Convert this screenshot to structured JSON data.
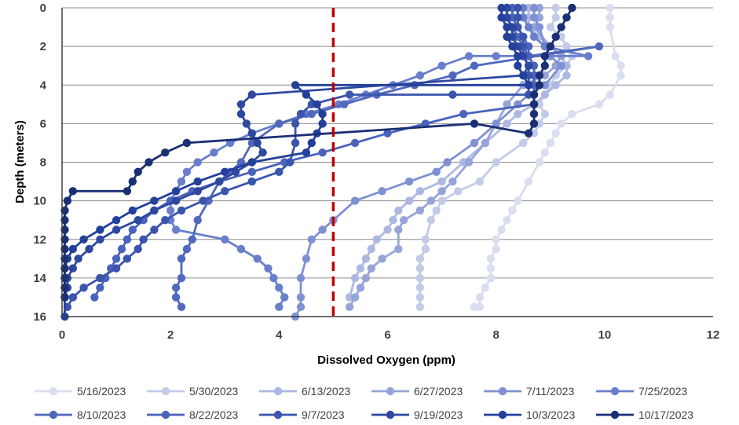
{
  "chart_data": {
    "type": "line",
    "title": "",
    "xlabel": "Dissolved Oxygen (ppm)",
    "ylabel": "Depth (meters)",
    "xlim": [
      0,
      12
    ],
    "ylim": [
      16,
      0
    ],
    "y_reversed": true,
    "xticks": [
      "0",
      "2",
      "4",
      "6",
      "8",
      "10",
      "12"
    ],
    "yticks": [
      "0",
      "2",
      "4",
      "6",
      "8",
      "10",
      "12",
      "14",
      "16"
    ],
    "grid": "horizontal",
    "legend_position": "bottom",
    "reference_line": {
      "x": 5,
      "color": "#c00000",
      "style": "dashed"
    },
    "series": [
      {
        "name": "5/16/2023",
        "color": "#d9def0",
        "x": [
          10.1,
          10.1,
          10.1,
          10.2,
          10.3,
          10.3,
          10.1,
          9.9,
          9.4,
          9.2,
          9.1,
          9.0,
          8.9,
          8.8,
          8.6,
          8.4,
          8.3,
          8.2,
          8.1,
          8.0,
          8.0,
          7.9,
          7.9,
          7.9,
          7.8,
          7.7,
          7.7,
          7.6,
          7.6
        ],
        "y": [
          0,
          0.5,
          1,
          2.5,
          3,
          3.5,
          4.5,
          5,
          5.5,
          6,
          6.5,
          7,
          7.5,
          8,
          9,
          10,
          10.5,
          11,
          11.5,
          12,
          12.5,
          13,
          13.5,
          14,
          14.5,
          15,
          15.5,
          15.5,
          15.5
        ]
      },
      {
        "name": "5/30/2023",
        "color": "#c3cbe9",
        "x": [
          9.1,
          9.1,
          9.0,
          9.2,
          9.3,
          9.4,
          9.3,
          9.1,
          9.0,
          8.8,
          8.9,
          8.8,
          8.7,
          8.5,
          8.0,
          7.7,
          7.3,
          7.0,
          6.9,
          6.8,
          6.7,
          6.7,
          6.6,
          6.6,
          6.6,
          6.6,
          6.6,
          6.6
        ],
        "y": [
          0,
          0.5,
          1,
          1.5,
          2,
          2.5,
          3,
          3.5,
          4,
          5,
          5.5,
          6,
          6.5,
          7,
          8,
          9,
          9.5,
          10,
          10.5,
          11,
          12,
          12.5,
          13,
          13.5,
          14,
          14.5,
          15,
          15.5
        ]
      },
      {
        "name": "6/13/2023",
        "color": "#adb8e2",
        "x": [
          8.6,
          8.6,
          8.6,
          8.8,
          9.0,
          9.2,
          9.3,
          9.3,
          9.1,
          8.9,
          8.7,
          8.4,
          8.2,
          7.8,
          7.4,
          7.0,
          6.6,
          6.4,
          6.2,
          6.1,
          6.0,
          5.8,
          5.7,
          5.6,
          5.5,
          5.4,
          5.3
        ],
        "y": [
          0,
          0.5,
          1,
          1.5,
          2,
          2.5,
          3,
          3.5,
          4,
          4.5,
          5,
          5.5,
          6,
          7,
          8,
          9,
          9.5,
          10,
          10.5,
          11,
          11.5,
          12,
          12.5,
          13,
          13.5,
          14,
          15
        ]
      },
      {
        "name": "6/27/2023",
        "color": "#96a4da",
        "x": [
          8.8,
          8.8,
          8.7,
          9.0,
          9.2,
          9.1,
          8.9,
          8.5,
          8.2,
          8.0,
          7.8,
          7.5,
          7.2,
          7.0,
          6.8,
          6.6,
          6.3,
          6.2,
          6.2,
          5.9,
          5.7,
          5.6,
          5.5,
          5.4,
          5.3
        ],
        "y": [
          0,
          0.5,
          1,
          2,
          2.5,
          3,
          3.5,
          4,
          5,
          6,
          7,
          8,
          9,
          9.5,
          10,
          10.5,
          11,
          11.5,
          12.5,
          13,
          13.5,
          14,
          14.5,
          15,
          15.5
        ]
      },
      {
        "name": "7/11/2023",
        "color": "#7f91d3",
        "x": [
          8.7,
          8.7,
          8.8,
          8.9,
          9.0,
          9.2,
          8.9,
          8.6,
          8.4,
          8.0,
          7.6,
          7.1,
          6.9,
          6.4,
          5.9,
          5.4,
          5.0,
          4.8,
          4.6,
          4.5,
          4.4,
          4.4,
          4.4,
          4.3
        ],
        "y": [
          0,
          0.5,
          1,
          2,
          2.5,
          3,
          4,
          4.5,
          5,
          6,
          7,
          8,
          8.5,
          9,
          9.5,
          10,
          11,
          11.5,
          12,
          13,
          14,
          15,
          15.5,
          16
        ]
      },
      {
        "name": "7/25/2023",
        "color": "#6a7fcc",
        "x": [
          8.5,
          8.5,
          8.6,
          8.7,
          8.9,
          9.7,
          8.6,
          8.0,
          7.5,
          7.0,
          6.6,
          6.1,
          5.6,
          5.1,
          4.5,
          4.0,
          3.5,
          3.1,
          2.8,
          2.5,
          2.3,
          2.2,
          2.1,
          2.0,
          2.0,
          2.0,
          2.1,
          3.0,
          3.3,
          3.6,
          3.8,
          3.9,
          4.0,
          4.1,
          4.0
        ],
        "y": [
          0,
          0.5,
          1,
          1.5,
          2,
          2.5,
          2.5,
          2.5,
          2.5,
          3,
          3.5,
          4,
          4.5,
          5,
          5.5,
          6,
          6.5,
          7,
          7.5,
          8,
          8.5,
          9,
          9.5,
          10,
          10.5,
          11,
          11.5,
          12,
          12.5,
          13,
          13.5,
          14,
          14.5,
          15,
          15.5
        ]
      },
      {
        "name": "8/10/2023",
        "color": "#5068bd",
        "x": [
          8.2,
          8.2,
          8.3,
          8.4,
          8.5,
          8.6,
          9.9,
          7.6,
          7.2,
          6.5,
          5.8,
          5.2,
          4.6,
          4.0,
          3.5,
          3.3,
          3.1,
          2.9,
          2.7,
          2.5,
          2.4,
          2.3,
          2.2,
          2.2,
          2.1,
          2.1,
          2.2
        ],
        "y": [
          0,
          0.5,
          1,
          1.5,
          2,
          2.5,
          2,
          3,
          3.5,
          4,
          4.5,
          5,
          5.5,
          6,
          7,
          8,
          8.5,
          9,
          10,
          11,
          12,
          12.5,
          13,
          14,
          14.5,
          15,
          15.5
        ]
      },
      {
        "name": "8/22/2023",
        "color": "#4a63bb",
        "x": [
          8.3,
          8.3,
          8.4,
          8.5,
          8.6,
          8.6,
          8.7,
          8.7,
          8.7,
          8.7,
          8.7,
          7.4,
          6.7,
          6.0,
          5.4,
          4.8,
          4.1,
          3.5,
          2.9,
          2.4,
          2.0,
          1.7,
          1.5,
          1.3,
          1.2,
          1.1,
          1.0,
          0.9,
          0.8,
          0.7,
          0.6
        ],
        "y": [
          0,
          0.5,
          1,
          1.5,
          2,
          2.5,
          3,
          3.5,
          4,
          4.5,
          5,
          5.5,
          6,
          6.5,
          7,
          7.5,
          8,
          8.5,
          9,
          9.5,
          10,
          10.5,
          11,
          11.5,
          12,
          12.5,
          13,
          13.5,
          14,
          14.5,
          15
        ]
      },
      {
        "name": "9/7/2023",
        "color": "#3a55ab",
        "x": [
          8.4,
          8.4,
          8.4,
          8.5,
          8.5,
          8.5,
          8.6,
          8.6,
          8.6,
          8.6,
          7.2,
          5.3,
          4.6,
          4.4,
          4.3,
          4.3,
          4.2,
          4.0,
          3.5,
          3.0,
          2.6,
          2.2,
          1.9,
          1.7,
          1.5,
          1.4,
          1.2,
          1.0,
          0.7,
          0.4,
          0.2,
          0.1
        ],
        "y": [
          0,
          0.5,
          1,
          1.5,
          2,
          2.5,
          3,
          3.5,
          4,
          4.5,
          4.5,
          4.5,
          5,
          5.5,
          6,
          7,
          8,
          8.5,
          9,
          9.5,
          10,
          10.5,
          11,
          11.5,
          12,
          12.5,
          13,
          13.5,
          14,
          14.5,
          15,
          15.5
        ]
      },
      {
        "name": "9/19/2023",
        "color": "#2e489f",
        "x": [
          8.2,
          8.2,
          8.3,
          8.3,
          8.4,
          8.5,
          8.6,
          8.5,
          3.5,
          3.3,
          3.3,
          3.4,
          3.5,
          3.6,
          3.7,
          3.5,
          3.2,
          2.9,
          2.5,
          2.1,
          1.7,
          1.4,
          1.0,
          0.7,
          0.5,
          0.3,
          0.2,
          0.1,
          0.1,
          0.05
        ],
        "y": [
          0,
          0.5,
          1,
          1.5,
          2,
          2.5,
          3,
          3.5,
          4.5,
          5,
          5.5,
          6,
          6.5,
          7,
          7.5,
          8,
          8.5,
          9,
          9.5,
          10,
          10.5,
          11,
          11.5,
          12,
          12.5,
          13,
          13.5,
          14,
          14.5,
          15
        ]
      },
      {
        "name": "10/3/2023",
        "color": "#23409a",
        "x": [
          8.1,
          8.1,
          8.2,
          8.2,
          8.3,
          8.4,
          8.4,
          8.5,
          8.6,
          4.3,
          4.5,
          4.7,
          4.8,
          4.8,
          4.7,
          4.6,
          4.5,
          3.5,
          3.0,
          2.5,
          2.1,
          1.7,
          1.3,
          1.0,
          0.7,
          0.4,
          0.2,
          0.1,
          0.05,
          0.05,
          0.05,
          0.05,
          0.05
        ],
        "y": [
          0,
          0.5,
          1,
          1.5,
          2,
          2.5,
          3,
          3.5,
          4,
          4,
          4.5,
          5,
          5.5,
          6,
          6.5,
          7,
          7.5,
          8,
          8.5,
          9,
          9.5,
          10,
          10.5,
          11,
          11.5,
          12,
          12.5,
          13,
          13.5,
          14,
          14.5,
          15,
          16
        ]
      },
      {
        "name": "10/17/2023",
        "color": "#1b2f74",
        "x": [
          9.4,
          9.3,
          9.2,
          9.1,
          9.0,
          8.9,
          8.9,
          8.8,
          8.8,
          8.7,
          8.7,
          8.7,
          8.7,
          8.6,
          7.6,
          2.3,
          1.9,
          1.6,
          1.4,
          1.3,
          1.2,
          0.2,
          0.1,
          0.05,
          0.05,
          0.05,
          0.05,
          0.05,
          0.05,
          0.05,
          0.05,
          0.05,
          0.05
        ],
        "y": [
          0,
          0.5,
          1,
          1.5,
          2,
          2.5,
          3,
          3.5,
          4,
          4.5,
          5,
          5.5,
          6,
          6.5,
          6,
          7,
          7.5,
          8,
          8.5,
          9,
          9.5,
          9.5,
          10,
          10.5,
          11,
          11.5,
          12,
          12.5,
          13,
          13.5,
          14,
          14.5,
          15
        ]
      }
    ]
  }
}
